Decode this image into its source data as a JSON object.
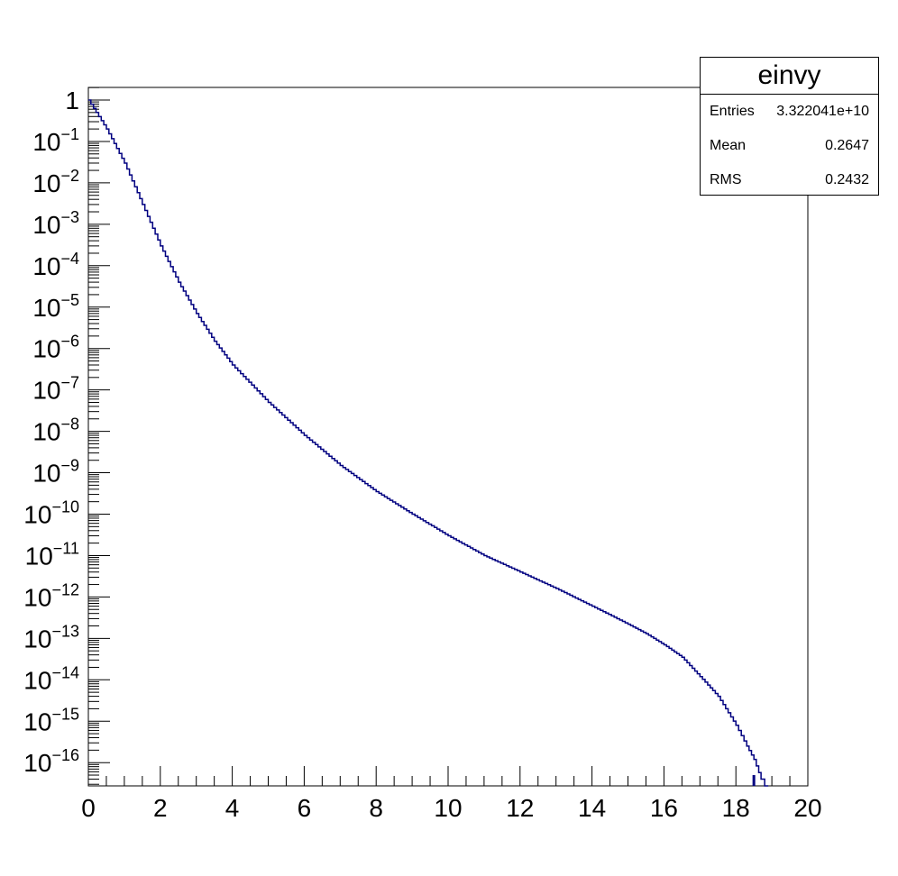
{
  "chart_data": {
    "type": "line",
    "histogram_name": "einvy",
    "title": "",
    "xlabel": "",
    "ylabel": "",
    "log_y": true,
    "grid": false,
    "xlim": [
      0,
      20
    ],
    "ylim": [
      2e-17,
      1.8
    ],
    "x_ticks": [
      "0",
      "2",
      "4",
      "6",
      "8",
      "10",
      "12",
      "14",
      "16",
      "18",
      "20"
    ],
    "y_ticks": [
      {
        "base": "1",
        "exp": ""
      },
      {
        "base": "10",
        "exp": "−1"
      },
      {
        "base": "10",
        "exp": "−2"
      },
      {
        "base": "10",
        "exp": "−3"
      },
      {
        "base": "10",
        "exp": "−4"
      },
      {
        "base": "10",
        "exp": "−5"
      },
      {
        "base": "10",
        "exp": "−6"
      },
      {
        "base": "10",
        "exp": "−7"
      },
      {
        "base": "10",
        "exp": "−8"
      },
      {
        "base": "10",
        "exp": "−9"
      },
      {
        "base": "10",
        "exp": "−10"
      },
      {
        "base": "10",
        "exp": "−11"
      },
      {
        "base": "10",
        "exp": "−12"
      },
      {
        "base": "10",
        "exp": "−13"
      },
      {
        "base": "10",
        "exp": "−14"
      },
      {
        "base": "10",
        "exp": "−15"
      },
      {
        "base": "10",
        "exp": "−16"
      }
    ],
    "line_color": "#000080",
    "series": [
      {
        "x": [
          0,
          0.5,
          1,
          1.5,
          2,
          2.5,
          3,
          3.5,
          4,
          5,
          6,
          7,
          8,
          9,
          10,
          11,
          12,
          13,
          14,
          15,
          15.5,
          16,
          16.5,
          17,
          17.5,
          18,
          18.3,
          18.5,
          18.7,
          18.8,
          18.9
        ],
        "y": [
          1,
          0.2,
          0.03,
          0.003,
          0.0003,
          4e-05,
          7e-06,
          1.5e-06,
          4e-07,
          5e-08,
          8e-09,
          1.5e-09,
          3.5e-10,
          1e-10,
          3e-11,
          1e-11,
          4e-12,
          1.6e-12,
          6e-13,
          2.2e-13,
          1.3e-13,
          7e-14,
          3.5e-14,
          1.2e-14,
          4e-15,
          8e-16,
          2.5e-16,
          1.2e-16,
          4e-17,
          2e-17,
          2e-17
        ]
      }
    ]
  },
  "stats": {
    "title": "einvy",
    "rows": [
      {
        "label": "Entries",
        "value": "3.322041e+10"
      },
      {
        "label": "Mean",
        "value": "0.2647"
      },
      {
        "label": "RMS",
        "value": "0.2432"
      }
    ]
  }
}
